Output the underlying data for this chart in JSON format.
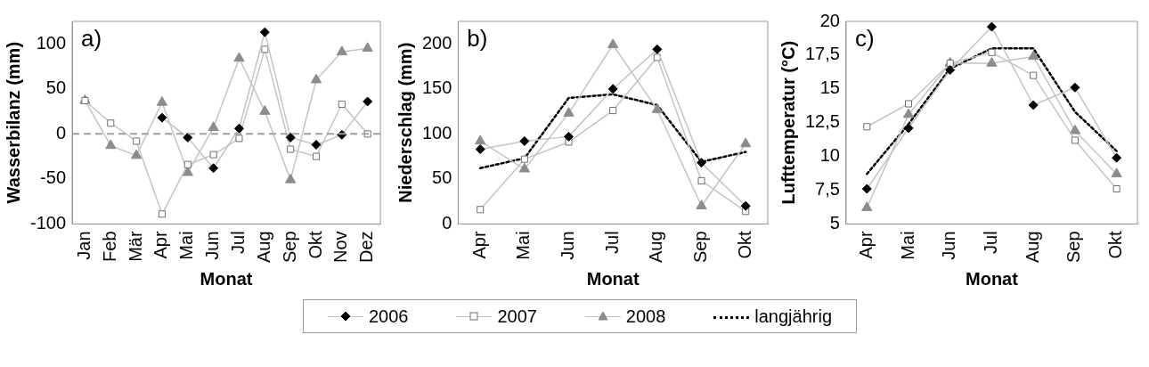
{
  "chart_data": [
    {
      "type": "line",
      "title": "a)",
      "xlabel": "Monat",
      "ylabel": "Wasserbilanz (mm)",
      "categories": [
        "Jan",
        "Feb",
        "Mär",
        "Apr",
        "Mai",
        "Jun",
        "Jul",
        "Aug",
        "Sep",
        "Okt",
        "Nov",
        "Dez"
      ],
      "ylim": [
        -100,
        125
      ],
      "yticks": [
        -100,
        -50,
        0,
        50,
        100
      ],
      "grid": false,
      "ref_lines": [
        {
          "axis": "y",
          "value": 0,
          "color": "#a0a0a0",
          "line_style": "dashed"
        }
      ],
      "series": [
        {
          "color": "#000000",
          "marker": "diamond",
          "values": [
            null,
            null,
            null,
            18,
            -4,
            -38,
            6,
            113,
            -4,
            -12,
            -1,
            36
          ]
        },
        {
          "color": "#707070",
          "marker": "square",
          "values": [
            37,
            12,
            -8,
            -89,
            -34,
            -23,
            -5,
            94,
            -17,
            -25,
            33,
            0
          ]
        },
        {
          "color": "#8c8c8c",
          "marker": "triangle",
          "values": [
            37,
            -13,
            -24,
            35,
            -43,
            7,
            84,
            25,
            -51,
            60,
            91,
            95
          ]
        }
      ]
    },
    {
      "type": "line",
      "title": "b)",
      "xlabel": "Monat",
      "ylabel": "Niederschlag (mm)",
      "categories": [
        "Apr",
        "Mai",
        "Jun",
        "Jul",
        "Aug",
        "Sep",
        "Okt"
      ],
      "ylim": [
        0,
        225
      ],
      "yticks": [
        0,
        50,
        100,
        150,
        200
      ],
      "grid": false,
      "legend": "bottom",
      "series": [
        {
          "name": "2006",
          "color": "#000000",
          "marker": "diamond",
          "values": [
            83,
            92,
            97,
            150,
            194,
            68,
            20
          ]
        },
        {
          "name": "2007",
          "color": "#707070",
          "marker": "square",
          "values": [
            16,
            72,
            91,
            126,
            185,
            48,
            14
          ]
        },
        {
          "name": "2008",
          "color": "#8c8c8c",
          "marker": "triangle",
          "values": [
            92,
            61,
            123,
            199,
            127,
            20,
            89
          ]
        },
        {
          "name": "langjährig",
          "color": "#000000",
          "marker": "none",
          "line_style": "dotted",
          "values": [
            62,
            73,
            140,
            144,
            132,
            69,
            80
          ]
        }
      ]
    },
    {
      "type": "line",
      "title": "c)",
      "xlabel": "Monat",
      "ylabel": "Lufttemperatur (°C)",
      "categories": [
        "Apr",
        "Mai",
        "Jun",
        "Jul",
        "Aug",
        "Sep",
        "Okt"
      ],
      "ylim": [
        5,
        20
      ],
      "yticks": [
        5,
        {
          "value": 7.5,
          "label": "7,5"
        },
        10,
        {
          "value": 12.5,
          "label": "12,5"
        },
        15,
        {
          "value": 17.5,
          "label": "17,5"
        },
        20
      ],
      "grid": false,
      "series": [
        {
          "color": "#000000",
          "marker": "diamond",
          "values": [
            7.6,
            12.1,
            16.4,
            19.6,
            13.8,
            15.1,
            9.9
          ]
        },
        {
          "color": "#707070",
          "marker": "square",
          "values": [
            12.2,
            13.9,
            16.9,
            17.7,
            16.0,
            11.2,
            7.6
          ]
        },
        {
          "color": "#8c8c8c",
          "marker": "triangle",
          "values": [
            6.2,
            13.1,
            16.9,
            16.9,
            17.4,
            11.9,
            8.7
          ]
        },
        {
          "color": "#000000",
          "marker": "none",
          "line_style": "dotted",
          "values": [
            8.7,
            12.4,
            16.5,
            18.0,
            18.0,
            13.3,
            10.4
          ]
        }
      ]
    }
  ]
}
